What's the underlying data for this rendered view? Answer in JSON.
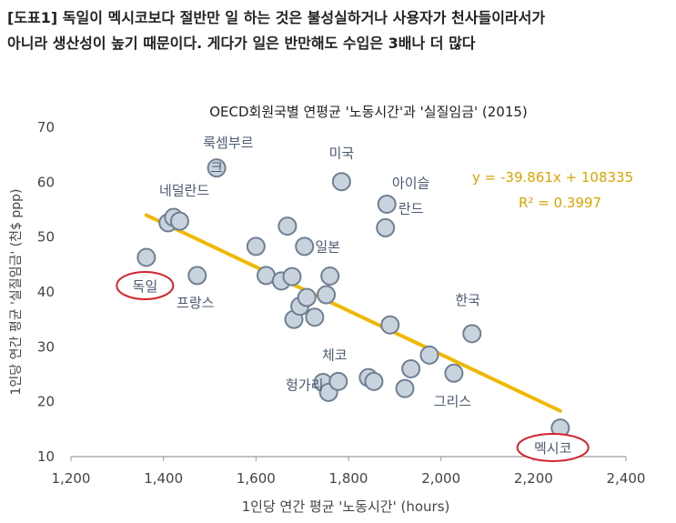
{
  "heading": {
    "line1": "[도표1] 독일이 멕시코보다 절반만 일 하는 것은 불성실하거나 사용자가 천사들이라서가",
    "line2": "아니라 생산성이 높기 때문이다. 게다가 일은 반만해도 수입은 3배나 더 많다"
  },
  "colors": {
    "point_fill": "#c9d3de",
    "point_stroke": "#6f7f92",
    "trend": "#f0b800",
    "equation": "#d9a300",
    "highlight": "#d3232f",
    "label": "#4a5a70",
    "axis_text": "#444444"
  },
  "chart_data": {
    "type": "scatter",
    "title": "OECD회원국별 연평균 '노동시간'과 '실질임금' (2015)",
    "xlabel": "1인당 연간 평균 '노동시간' (hours)",
    "ylabel": "1인당 연간 평균 '실질임금' (천$ ppp)",
    "xlim": [
      1200,
      2400
    ],
    "ylim": [
      10,
      70
    ],
    "x_ticks": [
      "1,200",
      "1,400",
      "1,600",
      "1,800",
      "2,000",
      "2,200",
      "2,400"
    ],
    "y_ticks": [
      "10",
      "20",
      "30",
      "40",
      "50",
      "60",
      "70"
    ],
    "grid": false,
    "points": [
      {
        "x": 1363,
        "y": 46.3
      },
      {
        "x": 1410,
        "y": 52.6
      },
      {
        "x": 1422,
        "y": 53.6
      },
      {
        "x": 1435,
        "y": 52.9
      },
      {
        "x": 1473,
        "y": 43.0
      },
      {
        "x": 1515,
        "y": 62.6
      },
      {
        "x": 1600,
        "y": 48.3
      },
      {
        "x": 1622,
        "y": 43.0
      },
      {
        "x": 1655,
        "y": 42.0
      },
      {
        "x": 1668,
        "y": 52.0
      },
      {
        "x": 1678,
        "y": 42.8
      },
      {
        "x": 1682,
        "y": 35.0
      },
      {
        "x": 1695,
        "y": 37.4
      },
      {
        "x": 1705,
        "y": 48.3
      },
      {
        "x": 1710,
        "y": 39.0
      },
      {
        "x": 1727,
        "y": 35.4
      },
      {
        "x": 1745,
        "y": 23.5
      },
      {
        "x": 1752,
        "y": 39.5
      },
      {
        "x": 1760,
        "y": 42.9
      },
      {
        "x": 1757,
        "y": 21.7
      },
      {
        "x": 1778,
        "y": 23.7
      },
      {
        "x": 1785,
        "y": 60.1
      },
      {
        "x": 1843,
        "y": 24.4
      },
      {
        "x": 1855,
        "y": 23.7
      },
      {
        "x": 1880,
        "y": 51.7
      },
      {
        "x": 1883,
        "y": 56.0
      },
      {
        "x": 1890,
        "y": 34.0
      },
      {
        "x": 1922,
        "y": 22.4
      },
      {
        "x": 1935,
        "y": 26.0
      },
      {
        "x": 1975,
        "y": 28.5
      },
      {
        "x": 2028,
        "y": 25.2
      },
      {
        "x": 2067,
        "y": 32.4
      },
      {
        "x": 2258,
        "y": 15.2
      }
    ],
    "trendline": {
      "x": [
        1363,
        2258
      ],
      "equation": "y = -39.861x + 108335",
      "r2": "R² = 0.3997"
    },
    "annotations": [
      {
        "text": "룩셈부르",
        "x": 1540,
        "y": 67.2
      },
      {
        "text": "크",
        "x": 1515,
        "y": 62.6
      },
      {
        "text": "미국",
        "x": 1785,
        "y": 65.3
      },
      {
        "text": "아이슬",
        "x": 1935,
        "y": 59.8
      },
      {
        "text": "란드",
        "x": 1935,
        "y": 55.2
      },
      {
        "text": "네덜란드",
        "x": 1445,
        "y": 58.5
      },
      {
        "text": "일본",
        "x": 1755,
        "y": 48.2
      },
      {
        "text": "독일",
        "x": 1360,
        "y": 41.0
      },
      {
        "text": "프랑스",
        "x": 1469,
        "y": 38.0
      },
      {
        "text": "한국",
        "x": 2058,
        "y": 38.5
      },
      {
        "text": "체코",
        "x": 1770,
        "y": 28.5
      },
      {
        "text": "헝가리",
        "x": 1705,
        "y": 23.0
      },
      {
        "text": "그리스",
        "x": 2025,
        "y": 20.0
      },
      {
        "text": "멕시코",
        "x": 2242,
        "y": 11.5
      }
    ],
    "highlighted": [
      "독일",
      "멕시코"
    ]
  }
}
